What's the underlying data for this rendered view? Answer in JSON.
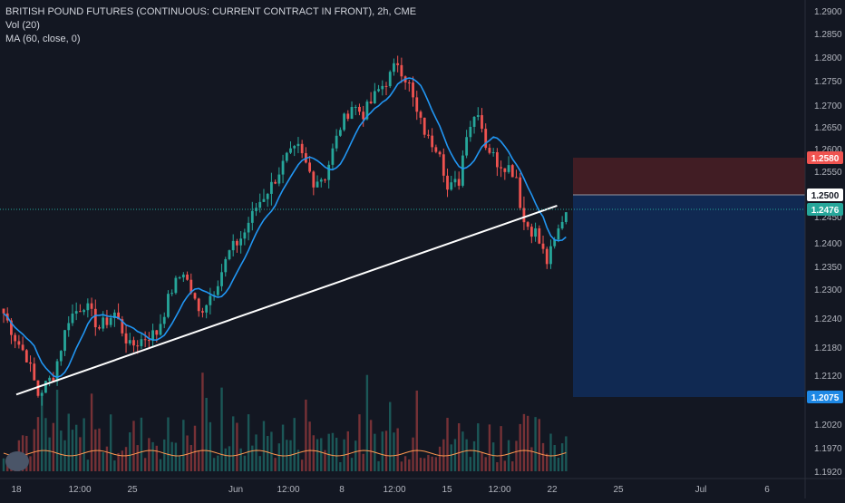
{
  "legend": {
    "title": "BRITISH POUND FUTURES (CONTINUOUS: CURRENT CONTRACT IN FRONT), 2h, CME",
    "vol": "Vol (20)",
    "ma": "MA (60, close, 0)"
  },
  "colors": {
    "background": "#131722",
    "up": "#26a69a",
    "down": "#ef5350",
    "ma_line": "#2196f3",
    "trendline": "#ffffff",
    "volume_ma": "#ff9850",
    "stop_zone": "#4a1f25",
    "target_zone": "#102a55",
    "axis_text": "#b2b5be"
  },
  "chart_data": {
    "type": "candlestick",
    "title": "BRITISH POUND FUTURES (CONTINUOUS: CURRENT CONTRACT IN FRONT), 2h, CME",
    "interval": "2h",
    "y_ticks": [
      1.29,
      1.285,
      1.28,
      1.275,
      1.27,
      1.265,
      1.26,
      1.255,
      1.245,
      1.24,
      1.235,
      1.23,
      1.224,
      1.218,
      1.212,
      1.202,
      1.197,
      1.192
    ],
    "y_tick_labels": [
      "1.2900",
      "1.2850",
      "1.2800",
      "1.2750",
      "1.2700",
      "1.2650",
      "1.2600",
      "1.2550",
      "1.2450",
      "1.2400",
      "1.2350",
      "1.2300",
      "1.2240",
      "1.2180",
      "1.2120",
      "1.2020",
      "1.1970",
      "1.1920"
    ],
    "x_tick_labels": [
      "18",
      "12:00",
      "25",
      "Jun",
      "12:00",
      "8",
      "12:00",
      "15",
      "12:00",
      "22",
      "25",
      "Jul",
      "6"
    ],
    "price_labels": [
      {
        "value": 1.258,
        "text": "1.2580",
        "color": "#ef5350"
      },
      {
        "value": 1.25,
        "text": "1.2500",
        "color": "#ffffff"
      },
      {
        "value": 1.2476,
        "text": "1.2476",
        "color": "#26a69a"
      },
      {
        "value": 1.2075,
        "text": "1.2075",
        "color": "#1e88e5"
      }
    ],
    "last_price": 1.2476,
    "position": {
      "entry": 1.25,
      "stop": 1.258,
      "target": 1.2075
    },
    "trendline": {
      "from": {
        "x": "18",
        "y": 1.208
      },
      "to": {
        "x": "Jul",
        "y": 1.2585
      }
    },
    "price_path": [
      [
        0,
        1.225
      ],
      [
        3,
        1.22
      ],
      [
        6,
        1.216
      ],
      [
        9,
        1.208
      ],
      [
        13,
        1.212
      ],
      [
        17,
        1.224
      ],
      [
        21,
        1.227
      ],
      [
        25,
        1.222
      ],
      [
        29,
        1.225
      ],
      [
        33,
        1.218
      ],
      [
        37,
        1.22
      ],
      [
        40,
        1.221
      ],
      [
        44,
        1.23
      ],
      [
        47,
        1.234
      ],
      [
        51,
        1.225
      ],
      [
        55,
        1.23
      ],
      [
        59,
        1.238
      ],
      [
        63,
        1.242
      ],
      [
        66,
        1.248
      ],
      [
        70,
        1.252
      ],
      [
        74,
        1.258
      ],
      [
        77,
        1.26
      ],
      [
        81,
        1.253
      ],
      [
        84,
        1.254
      ],
      [
        88,
        1.265
      ],
      [
        91,
        1.27
      ],
      [
        94,
        1.268
      ],
      [
        98,
        1.273
      ],
      [
        101,
        1.276
      ],
      [
        103,
        1.279
      ],
      [
        106,
        1.274
      ],
      [
        108,
        1.268
      ],
      [
        111,
        1.262
      ],
      [
        114,
        1.26
      ],
      [
        116,
        1.251
      ],
      [
        119,
        1.253
      ],
      [
        121,
        1.264
      ],
      [
        124,
        1.269
      ],
      [
        126,
        1.261
      ],
      [
        129,
        1.257
      ],
      [
        132,
        1.256
      ],
      [
        134,
        1.254
      ],
      [
        136,
        1.244
      ],
      [
        139,
        1.242
      ],
      [
        142,
        1.236
      ],
      [
        144,
        1.24
      ],
      [
        147,
        1.247
      ]
    ]
  }
}
